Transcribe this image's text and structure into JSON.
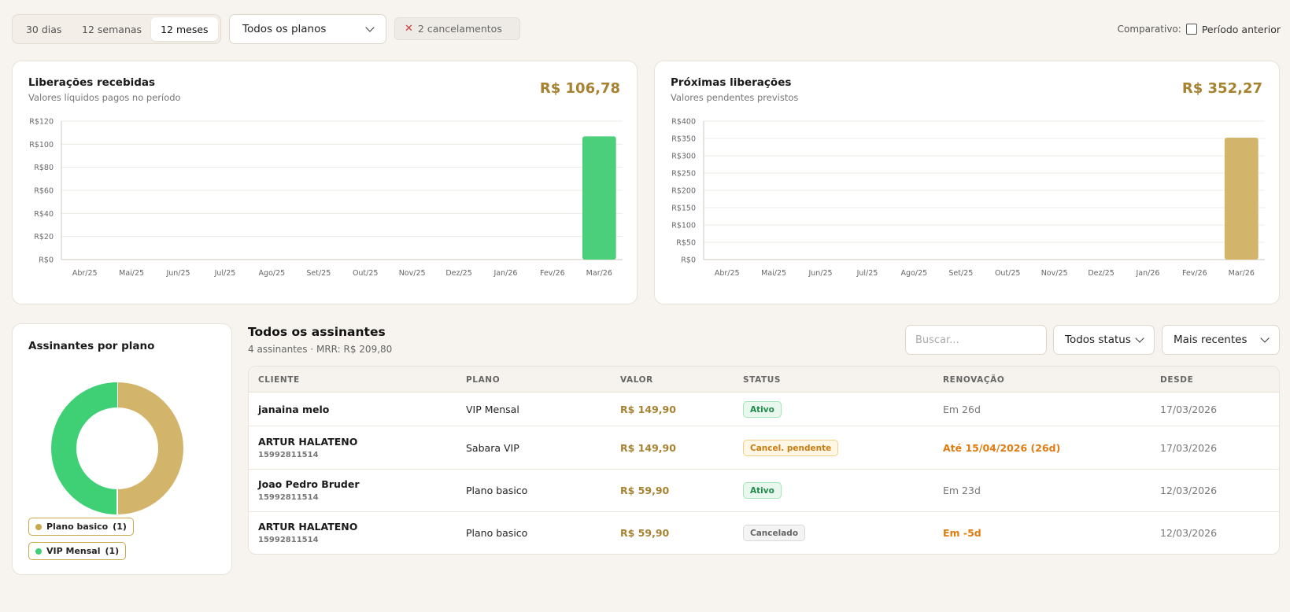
{
  "periods": [
    "30 dias",
    "12 semanas",
    "12 meses"
  ],
  "active_period": 2,
  "plan_filter": "Todos os planos",
  "cancel_chip": "2 cancelamentos",
  "compare": {
    "label": "Comparativo:",
    "option": "Período anterior"
  },
  "received": {
    "title": "Liberações recebidas",
    "subtitle": "Valores líquidos pagos no período",
    "total": "R$ 106,78"
  },
  "upcoming": {
    "title": "Próximas liberações",
    "subtitle": "Valores pendentes previstos",
    "total": "R$ 352,27"
  },
  "chart_data": [
    {
      "type": "bar",
      "categories": [
        "Abr/25",
        "Mai/25",
        "Jun/25",
        "Jul/25",
        "Ago/25",
        "Set/25",
        "Out/25",
        "Nov/25",
        "Dez/25",
        "Jan/26",
        "Fev/26",
        "Mar/26"
      ],
      "values": [
        0,
        0,
        0,
        0,
        0,
        0,
        0,
        0,
        0,
        0,
        0,
        106.78
      ],
      "yticks": [
        "R$0",
        "R$20",
        "R$40",
        "R$60",
        "R$80",
        "R$100",
        "R$120"
      ],
      "ylim": [
        0,
        120
      ],
      "color": "#4ccf7b"
    },
    {
      "type": "bar",
      "categories": [
        "Abr/25",
        "Mai/25",
        "Jun/25",
        "Jul/25",
        "Ago/25",
        "Set/25",
        "Out/25",
        "Nov/25",
        "Dez/25",
        "Jan/26",
        "Fev/26",
        "Mar/26"
      ],
      "values": [
        0,
        0,
        0,
        0,
        0,
        0,
        0,
        0,
        0,
        0,
        0,
        352.27
      ],
      "yticks": [
        "R$0",
        "R$50",
        "R$100",
        "R$150",
        "R$200",
        "R$250",
        "R$300",
        "R$350",
        "R$400"
      ],
      "ylim": [
        0,
        400
      ],
      "color": "#d2b56a"
    },
    {
      "type": "pie",
      "slices": [
        {
          "label": "Plano basico",
          "value": 1,
          "color": "#d2b56a"
        },
        {
          "label": "VIP Mensal",
          "value": 1,
          "color": "#3fcf74"
        }
      ]
    }
  ],
  "by_plan": {
    "title": "Assinantes por plano",
    "legend": [
      {
        "label": "Plano basico",
        "count": "(1)",
        "color": "#c9a84c"
      },
      {
        "label": "VIP Mensal",
        "count": "(1)",
        "color": "#3fcf74"
      }
    ]
  },
  "subscribers": {
    "title": "Todos os assinantes",
    "subtitle": "4 assinantes · MRR: R$ 209,80",
    "search_placeholder": "Buscar...",
    "status_filter": "Todos status",
    "sort": "Mais recentes",
    "columns": [
      "CLIENTE",
      "PLANO",
      "VALOR",
      "STATUS",
      "RENOVAÇÃO",
      "DESDE"
    ],
    "rows": [
      {
        "name": "janaina melo",
        "phone": "",
        "plan": "VIP Mensal",
        "value": "R$ 149,90",
        "status": "Ativo",
        "status_kind": "ativo",
        "renewal": "Em 26d",
        "renewal_warn": false,
        "since": "17/03/2026"
      },
      {
        "name": "ARTUR HALATENO",
        "phone": "15992811514",
        "plan": "Sabara VIP",
        "value": "R$ 149,90",
        "status": "Cancel. pendente",
        "status_kind": "pend",
        "renewal": "Até 15/04/2026 (26d)",
        "renewal_warn": true,
        "since": "17/03/2026"
      },
      {
        "name": "Joao Pedro Bruder",
        "phone": "15992811514",
        "plan": "Plano basico",
        "value": "R$ 59,90",
        "status": "Ativo",
        "status_kind": "ativo",
        "renewal": "Em 23d",
        "renewal_warn": false,
        "since": "12/03/2026"
      },
      {
        "name": "ARTUR HALATENO",
        "phone": "15992811514",
        "plan": "Plano basico",
        "value": "R$ 59,90",
        "status": "Cancelado",
        "status_kind": "canc",
        "renewal": "Em -5d",
        "renewal_warn": true,
        "since": "12/03/2026"
      }
    ]
  }
}
